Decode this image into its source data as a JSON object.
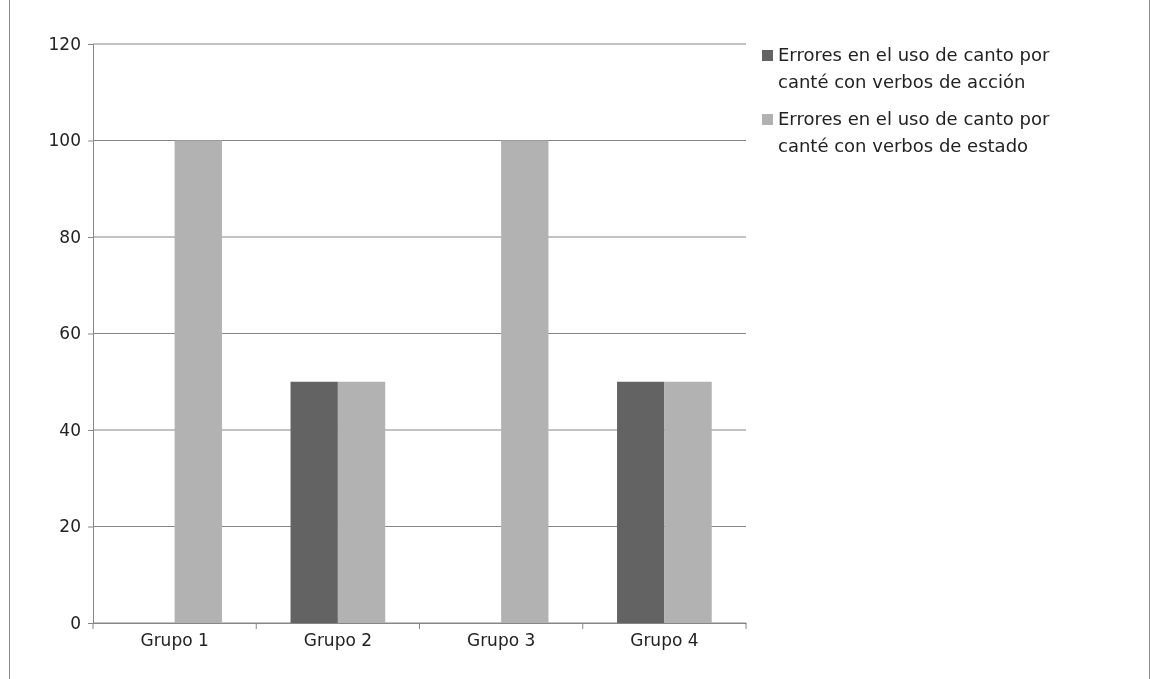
{
  "chart_data": {
    "type": "bar",
    "categories": [
      "Grupo 1",
      "Grupo 2",
      "Grupo 3",
      "Grupo 4"
    ],
    "series": [
      {
        "name": "Errores en el uso de canto por canté con verbos de acción",
        "color": "#636363",
        "values": [
          0,
          50,
          0,
          50
        ]
      },
      {
        "name": "Errores en el uso de canto por canté con verbos de estado",
        "color": "#b2b2b2",
        "values": [
          100,
          50,
          100,
          50
        ]
      }
    ],
    "ylim": [
      0,
      120
    ],
    "yticks": [
      0,
      20,
      40,
      60,
      80,
      100,
      120
    ],
    "grid": "y",
    "legend": "right"
  }
}
